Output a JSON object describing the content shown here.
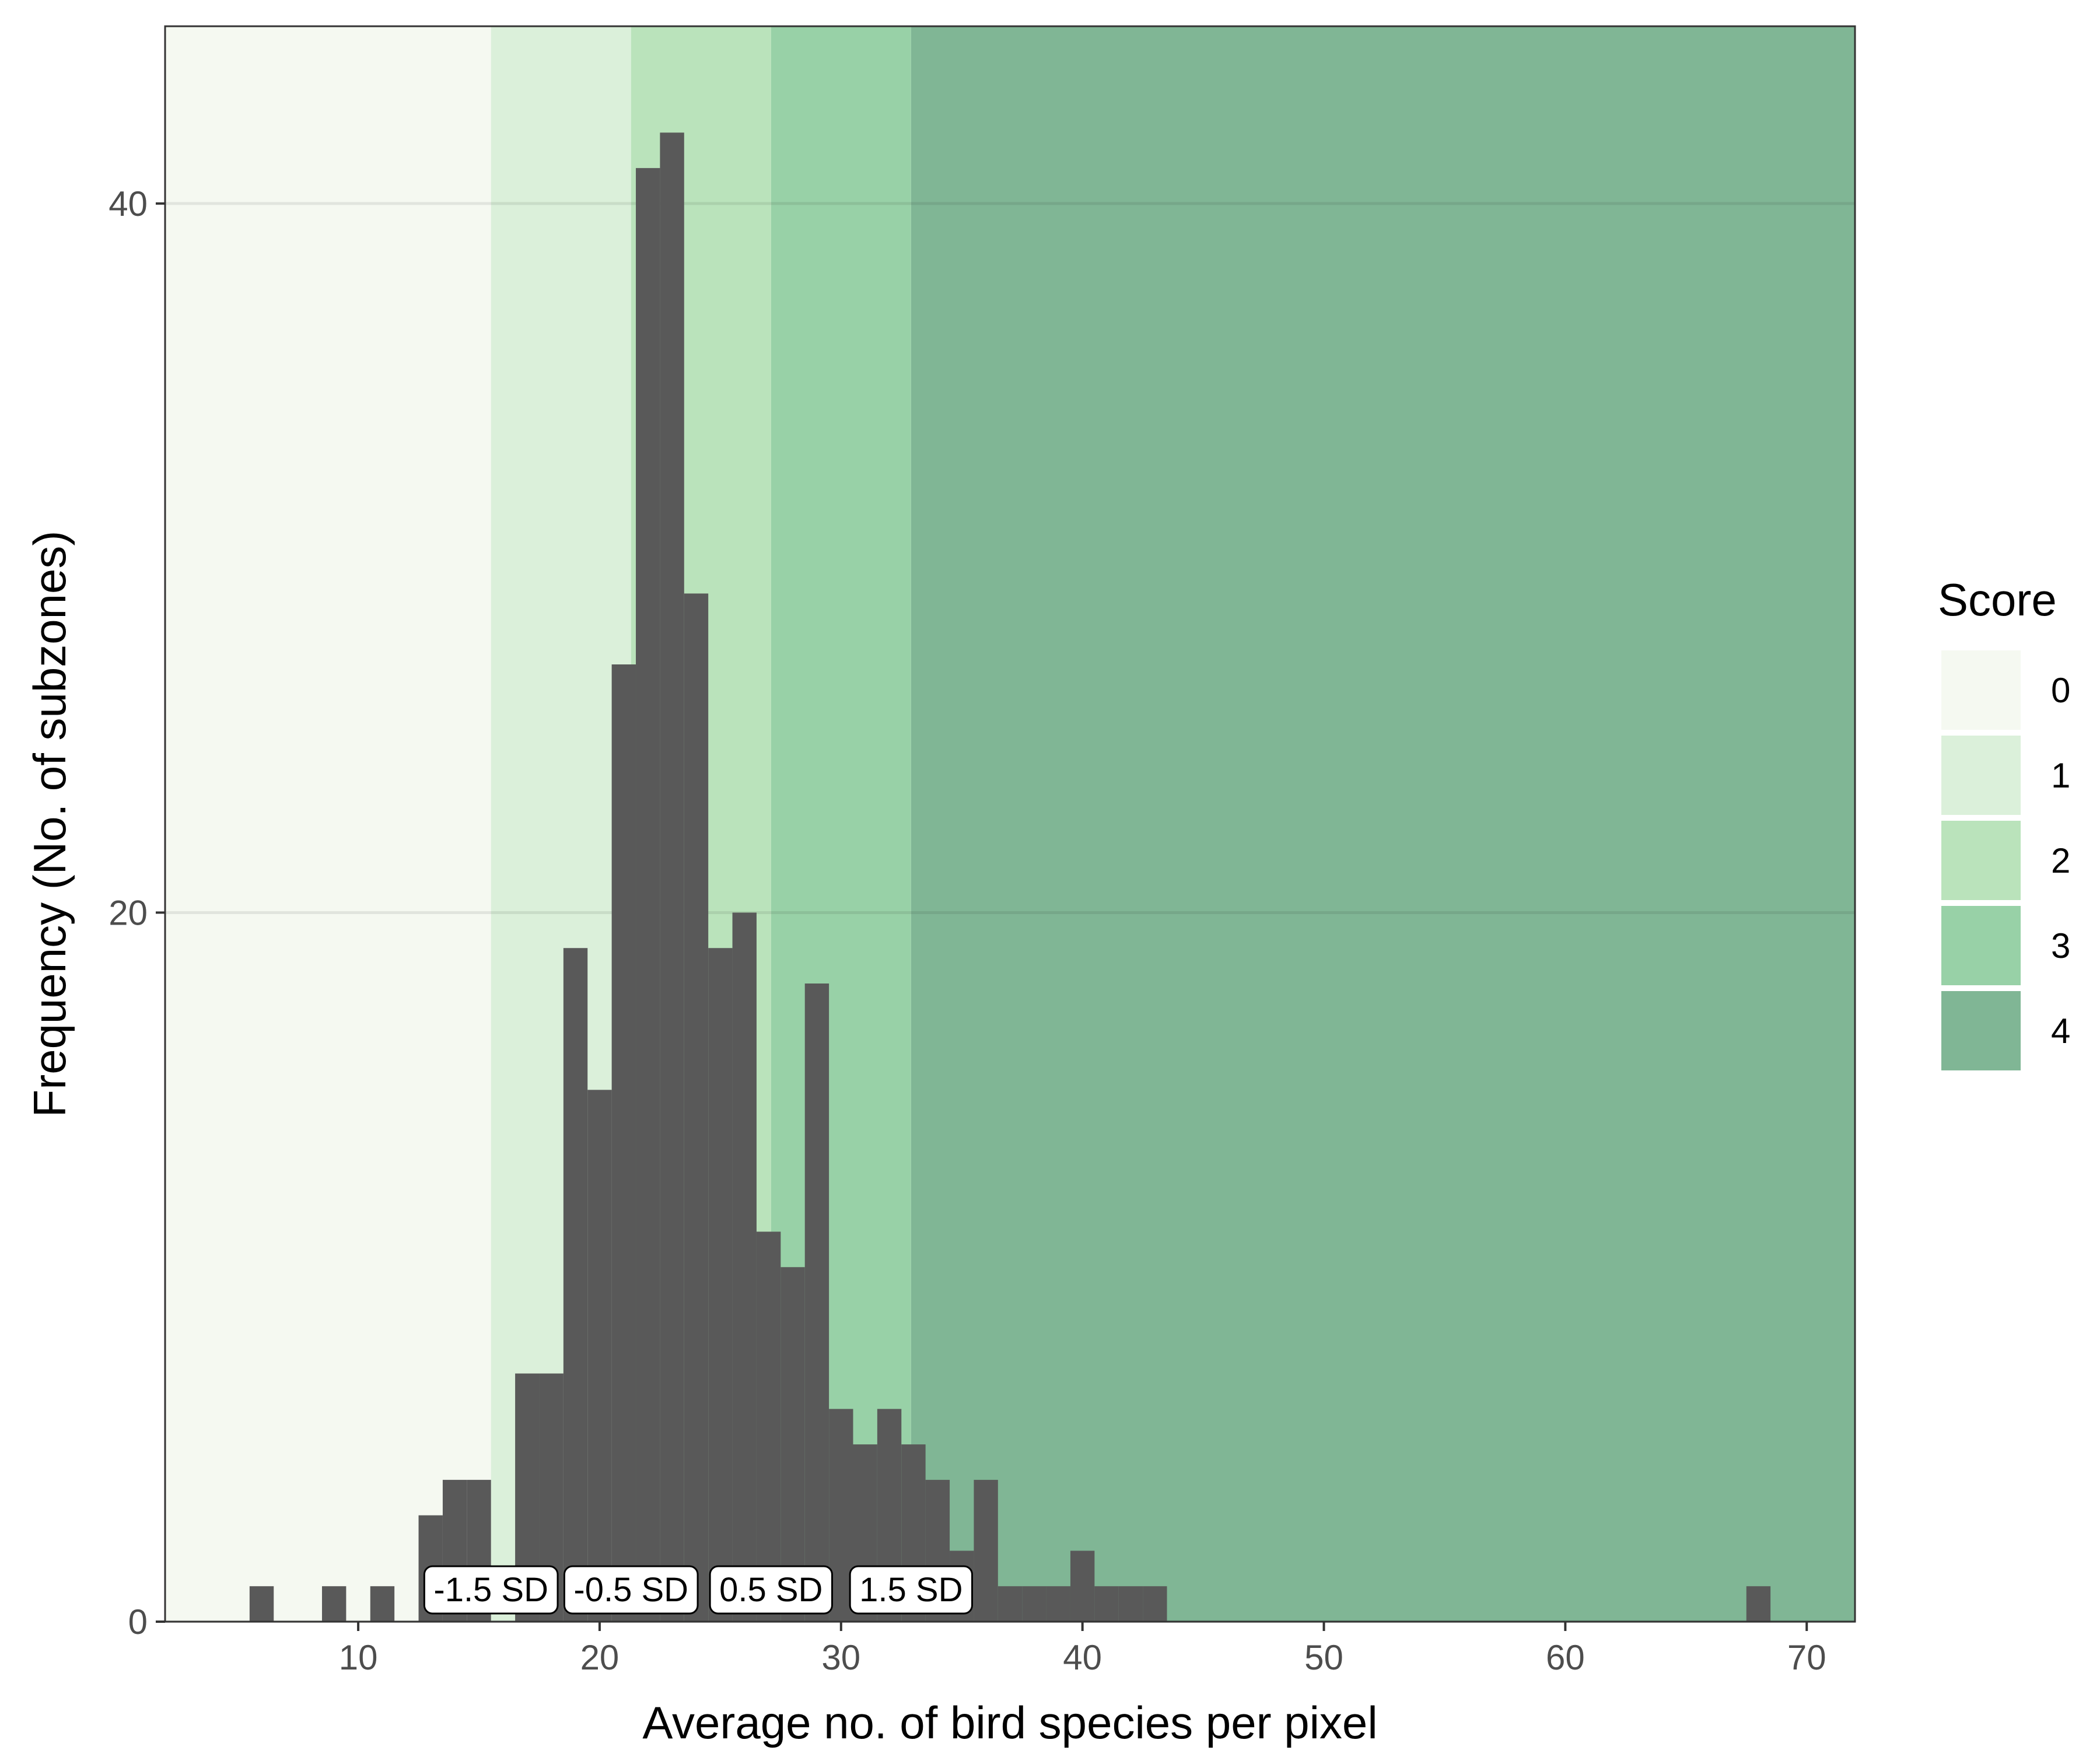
{
  "chart_data": {
    "type": "bar",
    "subtype": "histogram",
    "title": "",
    "xlabel": "Average no. of bird species per pixel",
    "ylabel": "Frequency (No. of subzones)",
    "xlim": [
      2,
      72
    ],
    "ylim": [
      0,
      45
    ],
    "xticks": [
      10,
      20,
      30,
      40,
      50,
      60,
      70
    ],
    "yticks": [
      0,
      20,
      40
    ],
    "grid": true,
    "bar_color": "#595959",
    "bin_width": 1,
    "bins": [
      {
        "x0": 5.5,
        "x1": 6.5,
        "count": 1
      },
      {
        "x0": 8.5,
        "x1": 9.5,
        "count": 1
      },
      {
        "x0": 10.5,
        "x1": 11.5,
        "count": 1
      },
      {
        "x0": 12.5,
        "x1": 13.5,
        "count": 3
      },
      {
        "x0": 13.5,
        "x1": 14.5,
        "count": 4
      },
      {
        "x0": 14.5,
        "x1": 15.5,
        "count": 4
      },
      {
        "x0": 16.5,
        "x1": 17.5,
        "count": 7
      },
      {
        "x0": 17.5,
        "x1": 18.5,
        "count": 7
      },
      {
        "x0": 18.5,
        "x1": 19.5,
        "count": 19
      },
      {
        "x0": 19.5,
        "x1": 20.5,
        "count": 15
      },
      {
        "x0": 20.5,
        "x1": 21.5,
        "count": 27
      },
      {
        "x0": 21.5,
        "x1": 22.5,
        "count": 41
      },
      {
        "x0": 22.5,
        "x1": 23.5,
        "count": 42
      },
      {
        "x0": 23.5,
        "x1": 24.5,
        "count": 29
      },
      {
        "x0": 24.5,
        "x1": 25.5,
        "count": 19
      },
      {
        "x0": 25.5,
        "x1": 26.5,
        "count": 20
      },
      {
        "x0": 26.5,
        "x1": 27.5,
        "count": 11
      },
      {
        "x0": 27.5,
        "x1": 28.5,
        "count": 10
      },
      {
        "x0": 28.5,
        "x1": 29.5,
        "count": 18
      },
      {
        "x0": 29.5,
        "x1": 30.5,
        "count": 6
      },
      {
        "x0": 30.5,
        "x1": 31.5,
        "count": 5
      },
      {
        "x0": 31.5,
        "x1": 32.5,
        "count": 6
      },
      {
        "x0": 32.5,
        "x1": 33.5,
        "count": 5
      },
      {
        "x0": 33.5,
        "x1": 34.5,
        "count": 4
      },
      {
        "x0": 34.5,
        "x1": 35.5,
        "count": 2
      },
      {
        "x0": 35.5,
        "x1": 36.5,
        "count": 4
      },
      {
        "x0": 36.5,
        "x1": 37.5,
        "count": 1
      },
      {
        "x0": 37.5,
        "x1": 38.5,
        "count": 1
      },
      {
        "x0": 38.5,
        "x1": 39.5,
        "count": 1
      },
      {
        "x0": 39.5,
        "x1": 40.5,
        "count": 2
      },
      {
        "x0": 40.5,
        "x1": 41.5,
        "count": 1
      },
      {
        "x0": 41.5,
        "x1": 42.5,
        "count": 1
      },
      {
        "x0": 42.5,
        "x1": 43.5,
        "count": 1
      },
      {
        "x0": 67.5,
        "x1": 68.5,
        "count": 1
      }
    ],
    "score_bands": [
      {
        "score": "0",
        "x0": 2,
        "x1": 15.5,
        "color": "#f5f9f1"
      },
      {
        "score": "1",
        "x0": 15.5,
        "x1": 21.3,
        "color": "#dbf0da"
      },
      {
        "score": "2",
        "x0": 21.3,
        "x1": 27.1,
        "color": "#bae3bb"
      },
      {
        "score": "3",
        "x0": 27.1,
        "x1": 32.9,
        "color": "#98d1a7"
      },
      {
        "score": "4",
        "x0": 32.9,
        "x1": 72,
        "color": "#80b695"
      }
    ],
    "sd_labels": [
      {
        "text": "-1.5 SD",
        "x": 15.5
      },
      {
        "text": "-0.5 SD",
        "x": 21.3
      },
      {
        "text": "0.5 SD",
        "x": 27.1
      },
      {
        "text": "1.5 SD",
        "x": 32.9
      }
    ],
    "legend": {
      "title": "Score",
      "placement": "right",
      "items": [
        {
          "label": "0",
          "color": "#f5f9f1"
        },
        {
          "label": "1",
          "color": "#dbf0da"
        },
        {
          "label": "2",
          "color": "#bae3bb"
        },
        {
          "label": "3",
          "color": "#98d1a7"
        },
        {
          "label": "4",
          "color": "#80b695"
        }
      ]
    }
  }
}
